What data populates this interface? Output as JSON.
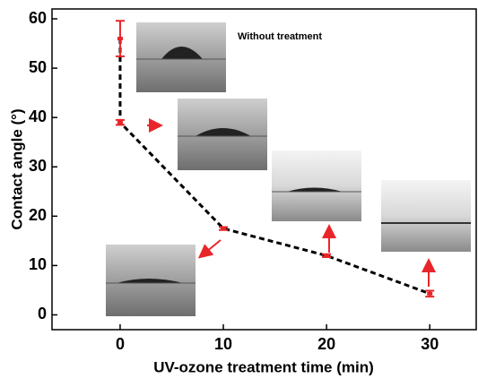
{
  "chart_data": {
    "type": "line",
    "xlabel": "UV-ozone treatment time (min)",
    "ylabel": "Contact angle (°)",
    "annotation": "Without treatment",
    "x": [
      0,
      0,
      10,
      20,
      30
    ],
    "y": [
      56,
      39,
      17.5,
      12,
      4.3
    ],
    "errors": [
      3.6,
      0.5,
      0.3,
      0.3,
      0.6
    ],
    "line_color": "#000000",
    "marker_color": "#e8262a",
    "xlim": [
      -6.6,
      34.5
    ],
    "xticks": [
      0,
      10,
      20,
      30
    ],
    "ylim": [
      -3,
      62
    ],
    "yticks": [
      0,
      10,
      20,
      30,
      40,
      50,
      60
    ]
  }
}
